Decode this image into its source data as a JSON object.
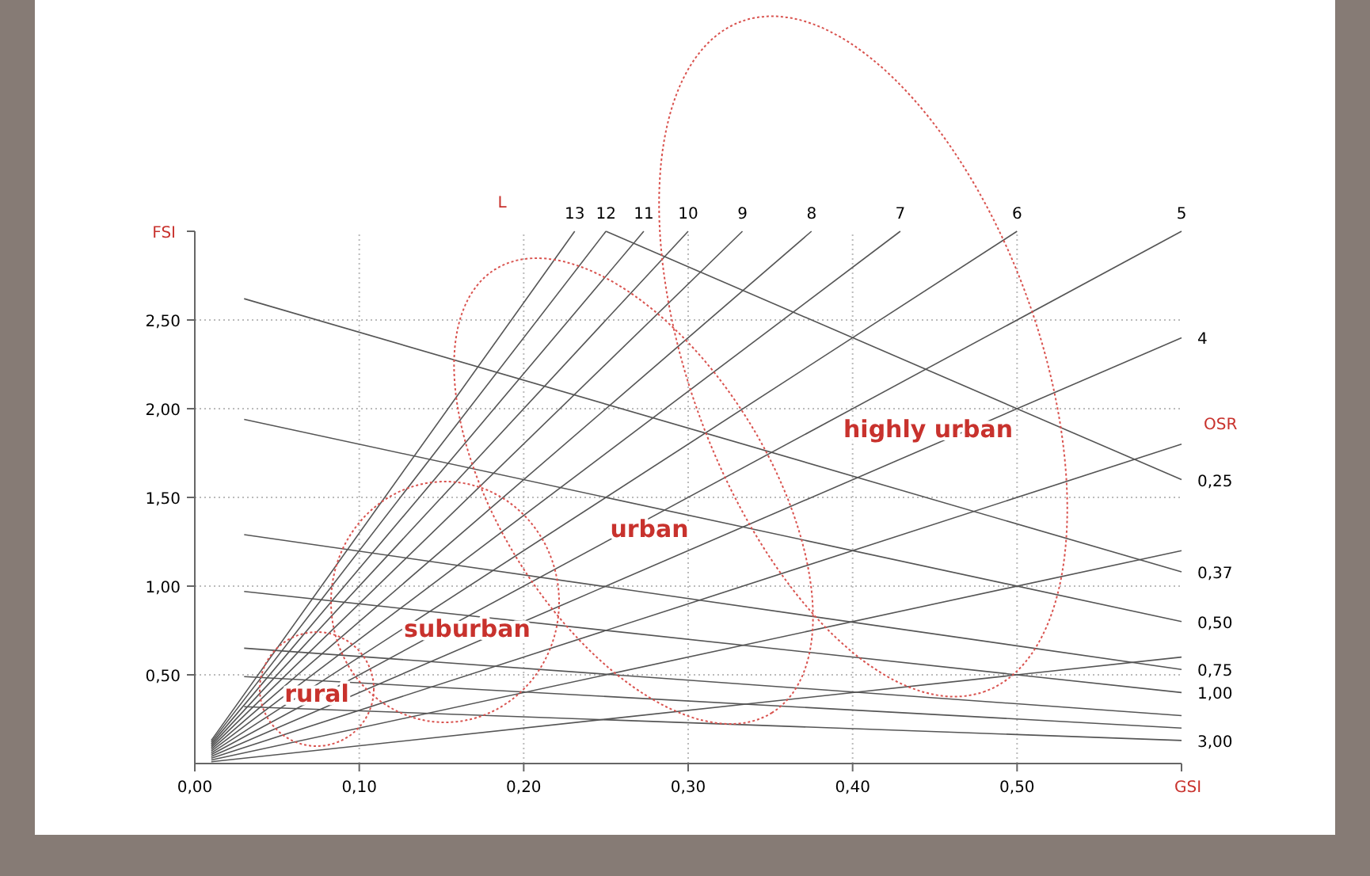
{
  "chart_data": {
    "type": "line",
    "xlabel": "GSI",
    "ylabel": "FSI",
    "xlim": [
      0,
      0.6
    ],
    "ylim": [
      0,
      3.0
    ],
    "xticks": [
      {
        "value": 0,
        "label": "0,00"
      },
      {
        "value": 0.1,
        "label": "0,10"
      },
      {
        "value": 0.2,
        "label": "0,20"
      },
      {
        "value": 0.3,
        "label": "0,30"
      },
      {
        "value": 0.4,
        "label": "0,40"
      },
      {
        "value": 0.5,
        "label": "0,50"
      },
      {
        "value": 0.6,
        "label": null
      }
    ],
    "yticks": [
      {
        "value": 0.5,
        "label": "0,50"
      },
      {
        "value": 1.0,
        "label": "1,00"
      },
      {
        "value": 1.5,
        "label": "1,50"
      },
      {
        "value": 2.0,
        "label": "2,00"
      },
      {
        "value": 2.5,
        "label": "2,50"
      },
      {
        "value": 3.0,
        "label": null
      }
    ],
    "grid": true,
    "marker": "none",
    "line_style": "solid",
    "series": [
      {
        "name": "13",
        "color": "#555555",
        "x": [
          0.01,
          0.231
        ],
        "values": [
          0.13,
          3.0
        ]
      },
      {
        "name": "12",
        "color": "#555555",
        "x": [
          0.01,
          0.25
        ],
        "values": [
          0.12,
          3.0
        ]
      },
      {
        "name": "11",
        "color": "#555555",
        "x": [
          0.01,
          0.273
        ],
        "values": [
          0.11,
          3.0
        ]
      },
      {
        "name": "10",
        "color": "#555555",
        "x": [
          0.01,
          0.3
        ],
        "values": [
          0.1,
          3.0
        ]
      },
      {
        "name": "9",
        "color": "#555555",
        "x": [
          0.01,
          0.333
        ],
        "values": [
          0.09,
          3.0
        ]
      },
      {
        "name": "8",
        "color": "#555555",
        "x": [
          0.01,
          0.375
        ],
        "values": [
          0.08,
          3.0
        ]
      },
      {
        "name": "7",
        "color": "#555555",
        "x": [
          0.01,
          0.429
        ],
        "values": [
          0.07,
          3.0
        ]
      },
      {
        "name": "6",
        "color": "#555555",
        "x": [
          0.01,
          0.5
        ],
        "values": [
          0.06,
          3.0
        ]
      },
      {
        "name": "5",
        "color": "#555555",
        "x": [
          0.01,
          0.6
        ],
        "values": [
          0.05,
          3.0
        ]
      },
      {
        "name": "4",
        "color": "#555555",
        "x": [
          0.01,
          0.6
        ],
        "values": [
          0.04,
          2.4
        ]
      },
      {
        "color": "#555555",
        "x": [
          0.01,
          0.6
        ],
        "values": [
          0.03,
          1.8
        ]
      },
      {
        "color": "#555555",
        "x": [
          0.01,
          0.6
        ],
        "values": [
          0.02,
          1.2
        ]
      },
      {
        "color": "#555555",
        "x": [
          0.01,
          0.6
        ],
        "values": [
          0.01,
          0.6
        ]
      },
      {
        "name": "0,25",
        "color": "#555555",
        "x": [
          0.25,
          0.6
        ],
        "values": [
          3.0,
          1.6
        ]
      },
      {
        "name": "0,37",
        "color": "#555555",
        "x": [
          0.03,
          0.6
        ],
        "values": [
          2.62,
          1.08
        ]
      },
      {
        "name": "0,50",
        "color": "#555555",
        "x": [
          0.03,
          0.6
        ],
        "values": [
          1.94,
          0.8
        ]
      },
      {
        "name": "0,75",
        "color": "#555555",
        "x": [
          0.03,
          0.6
        ],
        "values": [
          1.29,
          0.53
        ]
      },
      {
        "name": "1,00",
        "color": "#555555",
        "x": [
          0.03,
          0.6
        ],
        "values": [
          0.97,
          0.4
        ]
      },
      {
        "color": "#555555",
        "x": [
          0.03,
          0.6
        ],
        "values": [
          0.65,
          0.27
        ]
      },
      {
        "color": "#555555",
        "x": [
          0.03,
          0.6
        ],
        "values": [
          0.49,
          0.2
        ]
      },
      {
        "name": "3,00",
        "color": "#555555",
        "x": [
          0.03,
          0.6
        ],
        "values": [
          0.32,
          0.13
        ]
      }
    ],
    "annotations": [
      "L",
      "OSR",
      "rural",
      "suburban",
      "urban",
      "highly urban"
    ]
  }
}
